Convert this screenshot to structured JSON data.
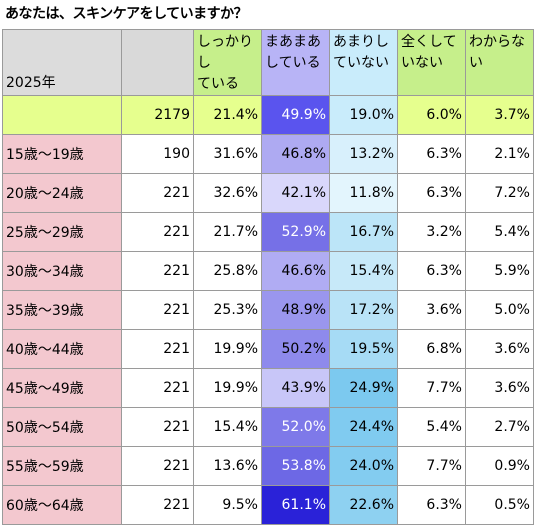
{
  "title": "あなたは、スキンケアをしていますか？",
  "chart_data": {
    "type": "table",
    "year_label": "2025年",
    "columns": [
      "しっかりしている",
      "まあまあしている",
      "あまりしていない",
      "全くしていない",
      "わからない"
    ],
    "column_lines": [
      [
        "しっかりし",
        "ている"
      ],
      [
        "まあまあ",
        "している"
      ],
      [
        "あまりし",
        "ていない"
      ],
      [
        "全くして",
        "いない"
      ],
      [
        "わからな",
        "い"
      ]
    ],
    "total": {
      "label": "",
      "n": "2179",
      "values": [
        "21.4%",
        "49.9%",
        "19.0%",
        "6.0%",
        "3.7%"
      ]
    },
    "rows": [
      {
        "label": "15歳～19歳",
        "n": "190",
        "values": [
          "31.6%",
          "46.8%",
          "13.2%",
          "6.3%",
          "2.1%"
        ]
      },
      {
        "label": "20歳～24歳",
        "n": "221",
        "values": [
          "32.6%",
          "42.1%",
          "11.8%",
          "6.3%",
          "7.2%"
        ]
      },
      {
        "label": "25歳～29歳",
        "n": "221",
        "values": [
          "21.7%",
          "52.9%",
          "16.7%",
          "3.2%",
          "5.4%"
        ]
      },
      {
        "label": "30歳～34歳",
        "n": "221",
        "values": [
          "25.8%",
          "46.6%",
          "15.4%",
          "6.3%",
          "5.9%"
        ]
      },
      {
        "label": "35歳～39歳",
        "n": "221",
        "values": [
          "25.3%",
          "48.9%",
          "17.2%",
          "3.6%",
          "5.0%"
        ]
      },
      {
        "label": "40歳～44歳",
        "n": "221",
        "values": [
          "19.9%",
          "50.2%",
          "19.5%",
          "6.8%",
          "3.6%"
        ]
      },
      {
        "label": "45歳～49歳",
        "n": "221",
        "values": [
          "19.9%",
          "43.9%",
          "24.9%",
          "7.7%",
          "3.6%"
        ]
      },
      {
        "label": "50歳～54歳",
        "n": "221",
        "values": [
          "15.4%",
          "52.0%",
          "24.4%",
          "5.4%",
          "2.7%"
        ]
      },
      {
        "label": "55歳～59歳",
        "n": "221",
        "values": [
          "13.6%",
          "53.8%",
          "24.0%",
          "7.7%",
          "0.9%"
        ]
      },
      {
        "label": "60歳～64歳",
        "n": "221",
        "values": [
          "9.5%",
          "61.1%",
          "22.6%",
          "6.3%",
          "0.5%"
        ]
      }
    ],
    "colors": {
      "header_green": "#c6ef8b",
      "total_row": "#e6ff8e",
      "age_label": "#f3c8cf",
      "header_blue": "#b8b4f6",
      "col2_scale_light": "#d9d7fb",
      "col2_scale_dark": "#2a22d8",
      "col3_scale_light": "#e3f5fd",
      "col3_scale_dark": "#7cc9ef"
    }
  }
}
